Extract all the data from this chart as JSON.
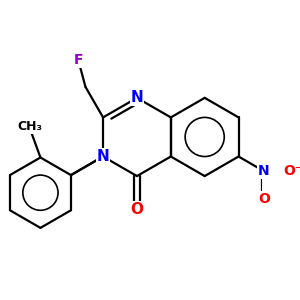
{
  "background_color": "#ffffff",
  "atom_colors": {
    "C": "#000000",
    "N": "#0000ff",
    "O": "#ff0000",
    "F": "#9400d3",
    "H": "#000000"
  },
  "bond_lw": 1.6,
  "font_size": 10,
  "small_font_size": 9,
  "figsize": [
    3.0,
    3.0
  ],
  "dpi": 100
}
